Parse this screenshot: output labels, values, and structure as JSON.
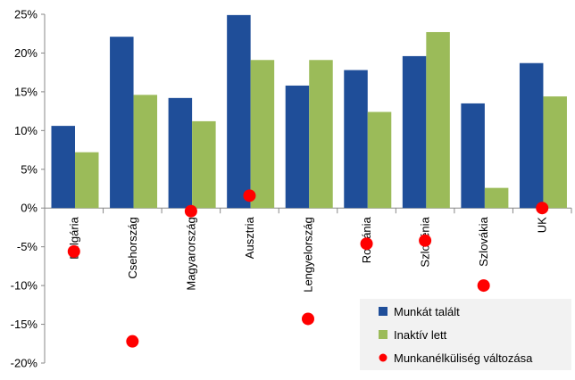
{
  "chart_data": {
    "type": "bar",
    "title": "",
    "xlabel": "",
    "ylabel": "",
    "ylim": [
      -0.2,
      0.25
    ],
    "yticks": [
      -0.2,
      -0.15,
      -0.1,
      -0.05,
      0.0,
      0.05,
      0.1,
      0.15,
      0.2,
      0.25
    ],
    "ytick_labels": [
      "-20%",
      "-15%",
      "-10%",
      "-5%",
      "0%",
      "5%",
      "10%",
      "15%",
      "20%",
      "25%"
    ],
    "categories": [
      "Bulgária",
      "Csehország",
      "Magyarország",
      "Ausztria",
      "Lengyelország",
      "Románia",
      "Szlovénia",
      "Szlovákia",
      "UK"
    ],
    "series": [
      {
        "name": "Munkát talált",
        "kind": "bar",
        "color": "#1f4e99",
        "values": [
          0.106,
          0.221,
          0.142,
          0.249,
          0.158,
          0.178,
          0.196,
          0.135,
          0.187
        ]
      },
      {
        "name": "Inaktív lett",
        "kind": "bar",
        "color": "#9bbb59",
        "values": [
          0.072,
          0.146,
          0.112,
          0.191,
          0.191,
          0.124,
          0.227,
          0.026,
          0.144
        ]
      },
      {
        "name": "Munkanélküliség változása",
        "kind": "marker",
        "color": "#ff0000",
        "values": [
          -0.056,
          -0.172,
          -0.004,
          0.016,
          -0.143,
          -0.046,
          -0.042,
          -0.1,
          0.0
        ]
      }
    ],
    "grid": false,
    "legend_position": "bottom-right"
  }
}
